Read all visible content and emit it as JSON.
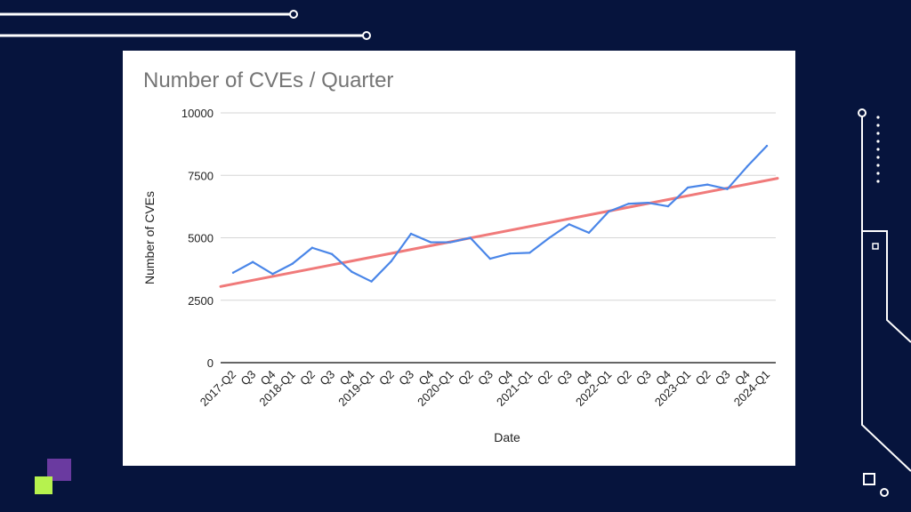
{
  "colors": {
    "background": "#06143d",
    "card": "#ffffff",
    "series_line": "#4a86e8",
    "trend_line": "#f07a7a",
    "accent_purple": "#6a3aa0",
    "accent_green": "#b6f24e"
  },
  "chart_data": {
    "type": "line",
    "title": "Number of CVEs / Quarter",
    "xlabel": "Date",
    "ylabel": "Number of CVEs",
    "ylim": [
      0,
      10000
    ],
    "yticks": [
      "0",
      "2500",
      "5000",
      "7500",
      "10000"
    ],
    "grid": true,
    "categories": [
      "2017-Q2",
      "Q3",
      "Q4",
      "2018-Q1",
      "Q2",
      "Q3",
      "Q4",
      "2019-Q1",
      "Q2",
      "Q3",
      "Q4",
      "2020-Q1",
      "Q2",
      "Q3",
      "Q4",
      "2021-Q1",
      "Q2",
      "Q3",
      "Q4",
      "2022-Q1",
      "Q2",
      "Q3",
      "Q4",
      "2023-Q1",
      "Q2",
      "Q3",
      "Q4",
      "2024-Q1"
    ],
    "series": [
      {
        "values": [
          3600,
          4030,
          3550,
          3960,
          4600,
          4350,
          3640,
          3250,
          4060,
          5160,
          4820,
          4820,
          5000,
          4160,
          4370,
          4400,
          5000,
          5540,
          5200,
          6050,
          6360,
          6400,
          6260,
          7010,
          7130,
          6950,
          7850,
          8680
        ]
      }
    ],
    "trendline": {
      "start": 3050,
      "end": 7380
    }
  }
}
